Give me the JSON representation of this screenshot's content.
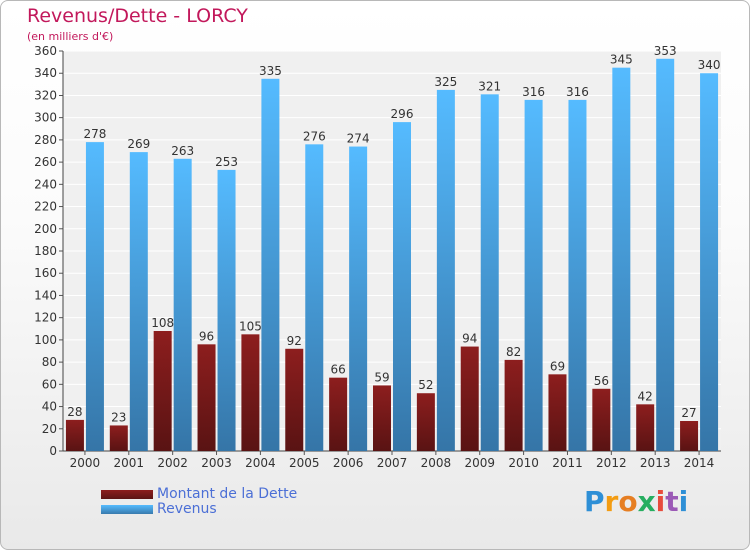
{
  "header": {
    "title": "Revenus/Dette - LORCY",
    "subtitle": "(en milliers d'€)"
  },
  "legend": {
    "items": [
      {
        "label": "Montant de la Dette",
        "color": "#7b1a1a"
      },
      {
        "label": "Revenus",
        "color": "#4aa3e8"
      }
    ]
  },
  "logo": {
    "letters": [
      "P",
      "r",
      "o",
      "x",
      "i",
      "t",
      "i"
    ],
    "colors": [
      "#2e8fd6",
      "#f39c12",
      "#e67e22",
      "#27ae60",
      "#e74c3c",
      "#9b59b6",
      "#2e8fd6"
    ]
  },
  "chart_data": {
    "type": "bar",
    "categories": [
      "2000",
      "2001",
      "2002",
      "2003",
      "2004",
      "2005",
      "2006",
      "2007",
      "2008",
      "2009",
      "2010",
      "2011",
      "2012",
      "2013",
      "2014"
    ],
    "series": [
      {
        "name": "Montant de la Dette",
        "color": "#7b1a1a",
        "values": [
          28,
          23,
          108,
          96,
          105,
          92,
          66,
          59,
          52,
          94,
          82,
          69,
          56,
          42,
          27
        ]
      },
      {
        "name": "Revenus",
        "color": "#4aa3e8",
        "values": [
          278,
          269,
          263,
          253,
          335,
          276,
          274,
          296,
          325,
          321,
          316,
          316,
          345,
          353,
          340
        ]
      }
    ],
    "ylim": [
      0,
      360
    ],
    "yticks": [
      0,
      20,
      40,
      60,
      80,
      100,
      120,
      140,
      160,
      180,
      200,
      220,
      240,
      260,
      280,
      300,
      320,
      340,
      360
    ],
    "grid": true,
    "legend_position": "bottom-left"
  }
}
